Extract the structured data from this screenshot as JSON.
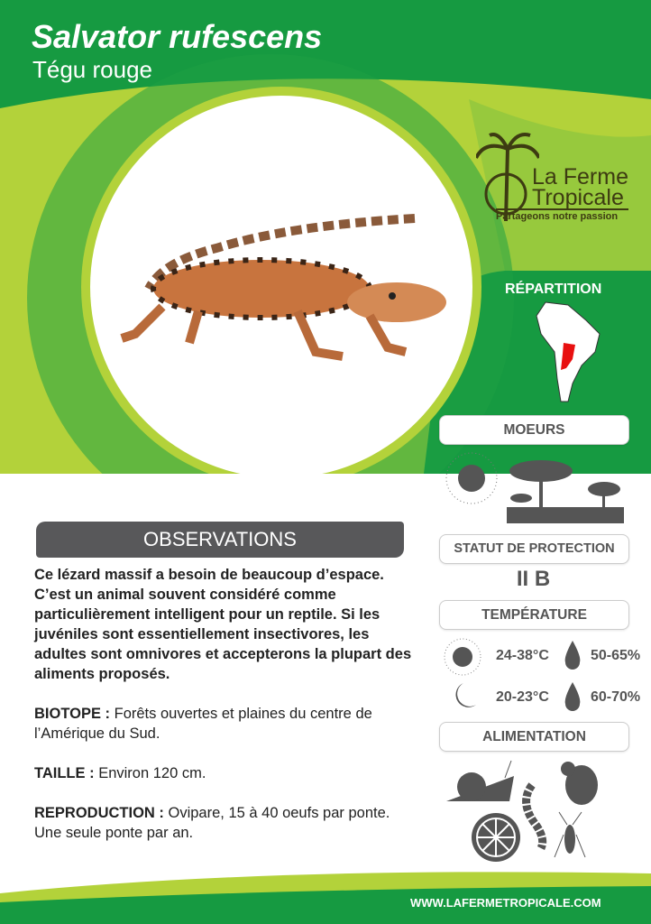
{
  "header": {
    "title": "Salvator rufescens",
    "subtitle": "Tégu rouge"
  },
  "logo": {
    "line1": "La Ferme",
    "line2": "Tropicale",
    "tagline": "Partageons notre passion"
  },
  "colors": {
    "dark_green": "#169a41",
    "lime": "#b3d23a",
    "gray": "#58585a"
  },
  "repartition": {
    "label": "RÉPARTITION",
    "map": "south-america-map",
    "highlight_color": "#e81010"
  },
  "observations": {
    "heading": "OBSERVATIONS",
    "intro": "Ce lézard massif a besoin de beaucoup d’espace. C’est un animal souvent considéré comme particulièrement intelligent pour un reptile. Si les juvéniles sont essentiellement insectivores, les adultes sont omnivores et accepterons la plupart des aliments proposés.",
    "biotope_label": "BIOTOPE :",
    "biotope": " Forêts ouvertes et plaines du centre de l’Amérique du Sud.",
    "taille_label": "TAILLE :",
    "taille": " Environ 120 cm.",
    "repro_label": "REPRODUCTION :",
    "repro": " Ovipare, 15 à 40 oeufs par ponte. Une seule ponte par an."
  },
  "moeurs": {
    "label": "MOEURS",
    "icons": [
      "sun-icon",
      "savanna-icon"
    ]
  },
  "protection": {
    "label": "STATUT DE PROTECTION",
    "value": "II B"
  },
  "temperature": {
    "label": "TEMPÉRATURE",
    "day_temp": "24-38°C",
    "day_humidity": "50-65%",
    "night_temp": "20-23°C",
    "night_humidity": "60-70%"
  },
  "alimentation": {
    "label": "ALIMENTATION",
    "icons": [
      "snail-icon",
      "worm-icon",
      "rodent-icon",
      "citrus-icon",
      "cricket-icon"
    ]
  },
  "footer": {
    "url": "WWW.LAFERMETROPICALE.COM"
  }
}
